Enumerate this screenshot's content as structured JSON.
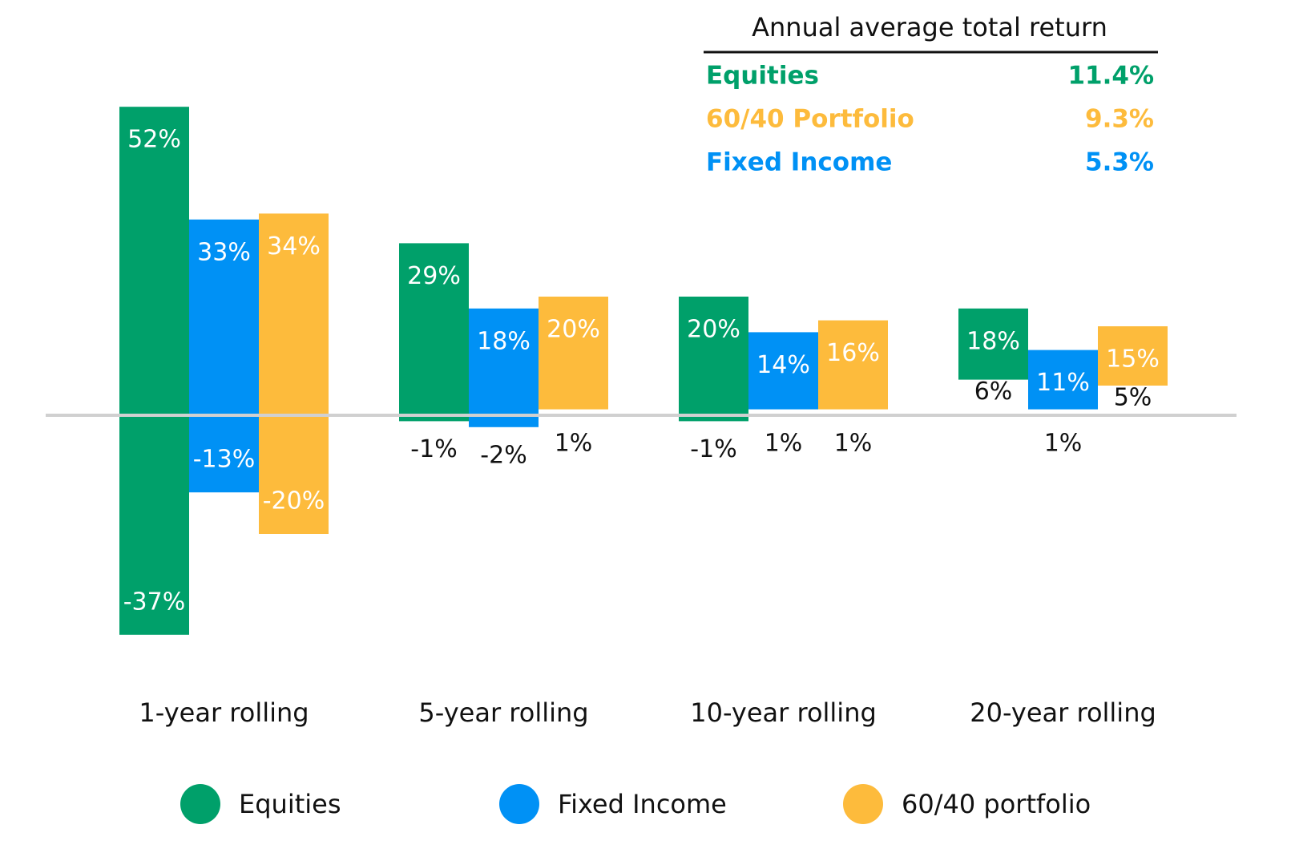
{
  "chart_data": {
    "type": "range_bar",
    "categories": [
      "1-year rolling",
      "5-year rolling",
      "10-year rolling",
      "20-year rolling"
    ],
    "series": [
      {
        "name": "Equities",
        "color": "#00a06a",
        "high": [
          52,
          29,
          20,
          18
        ],
        "high_labels": [
          "52%",
          "29%",
          "20%",
          "18%"
        ],
        "low": [
          -37,
          -1,
          -1,
          6
        ],
        "low_labels": [
          "-37%",
          "-1%",
          "-1%",
          "6%"
        ]
      },
      {
        "name": "Fixed Income",
        "color": "#0091f5",
        "high": [
          33,
          18,
          14,
          11
        ],
        "high_labels": [
          "33%",
          "18%",
          "14%",
          "11%"
        ],
        "low": [
          -13,
          -2,
          1,
          1
        ],
        "low_labels": [
          "-13%",
          "-2%",
          "1%",
          "1%"
        ]
      },
      {
        "name": "60/40 portfolio",
        "color": "#fdbb3c",
        "high": [
          34,
          20,
          16,
          15
        ],
        "high_labels": [
          "34%",
          "20%",
          "16%",
          "15%"
        ],
        "low": [
          -20,
          1,
          1,
          5
        ],
        "low_labels": [
          "-20%",
          "1%",
          "1%",
          "5%"
        ]
      }
    ],
    "ylim": [
      -45,
      60
    ],
    "summary": {
      "title": "Annual average total return",
      "rows": [
        {
          "name": "Equities",
          "value": "11.4%",
          "color": "#00a06a"
        },
        {
          "name": "60/40 Portfolio",
          "value": "9.3%",
          "color": "#fdbb3c"
        },
        {
          "name": "Fixed Income",
          "value": "5.3%",
          "color": "#0091f5"
        }
      ]
    }
  }
}
